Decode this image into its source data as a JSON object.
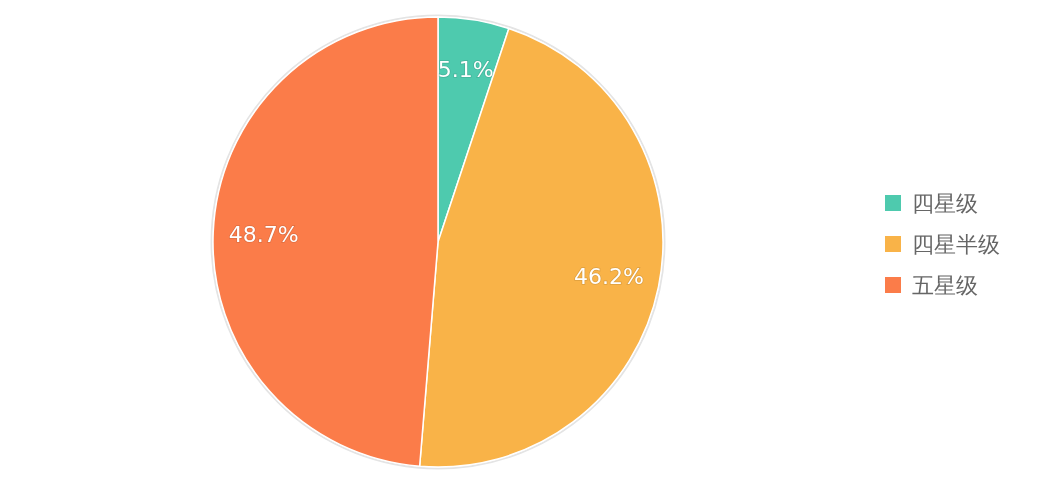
{
  "chart_data": {
    "type": "pie",
    "categories": [
      "四星级",
      "四星半级",
      "五星级"
    ],
    "values": [
      5.1,
      46.2,
      48.7
    ],
    "colors": [
      "#4ecaae",
      "#f9b348",
      "#fb7c49"
    ],
    "value_labels": [
      "5.1%",
      "46.2%",
      "48.7%"
    ],
    "legend": "right"
  }
}
